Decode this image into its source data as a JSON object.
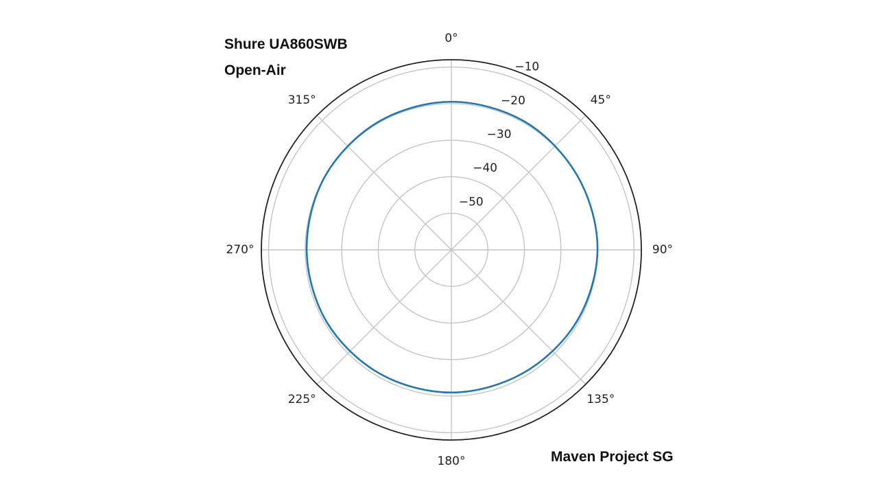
{
  "header": {
    "title": "Shure UA860SWB",
    "subtitle": "Open-Air"
  },
  "footer": {
    "credit": "Maven Project SG"
  },
  "chart_data": {
    "type": "polar-line",
    "title": "",
    "angle_unit": "degrees",
    "angle_zero": "top",
    "angle_direction": "clockwise",
    "r_unit": "dB",
    "r_range": [
      -60,
      -8
    ],
    "angle_ticks": [
      0,
      45,
      90,
      135,
      180,
      225,
      270,
      315
    ],
    "angle_tick_labels": [
      "0°",
      "45°",
      "90°",
      "135°",
      "180°",
      "225°",
      "270°",
      "315°"
    ],
    "r_ticks": [
      -50,
      -40,
      -30,
      -20,
      -10
    ],
    "r_tick_labels": [
      "−50",
      "−40",
      "−30",
      "−20",
      "−10"
    ],
    "r_tick_label_angle": 22.5,
    "grid": true,
    "legend": "none",
    "series": [
      {
        "color": "#1f77b4",
        "theta": [
          0,
          30,
          60,
          90,
          120,
          150,
          180,
          210,
          240,
          270,
          300,
          330
        ],
        "r": [
          -19.5,
          -19.6,
          -20.0,
          -20.0,
          -20.5,
          -21.0,
          -21.0,
          -20.9,
          -20.6,
          -20.4,
          -20.0,
          -19.7
        ]
      }
    ]
  }
}
